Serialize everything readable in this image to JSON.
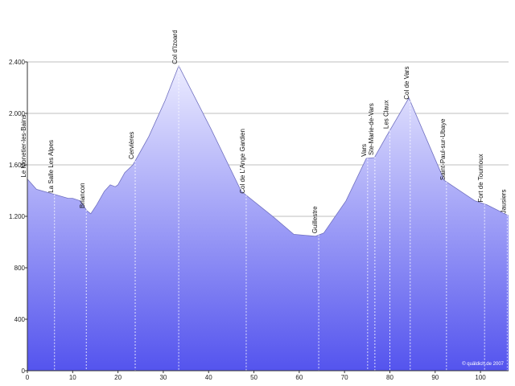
{
  "chart_data": {
    "type": "area",
    "x": [
      0,
      2,
      6,
      9,
      10,
      11.7,
      13.1,
      14,
      15.3,
      17,
      18.3,
      19.4,
      20,
      21.5,
      23.3,
      24.2,
      26.8,
      30.4,
      33.4,
      40.5,
      47.2,
      54.3,
      58.8,
      63.6,
      65.4,
      70.3,
      74.8,
      76.6,
      79.2,
      84.2,
      92,
      98.8,
      101.4,
      106.2
    ],
    "values": [
      1490,
      1410,
      1370,
      1340,
      1340,
      1320,
      1245,
      1220,
      1290,
      1395,
      1445,
      1430,
      1445,
      1540,
      1600,
      1656,
      1820,
      2100,
      2370,
      1880,
      1395,
      1195,
      1060,
      1045,
      1070,
      1320,
      1650,
      1656,
      1820,
      2120,
      1480,
      1320,
      1290,
      1205
    ],
    "xlim": [
      0,
      106.2
    ],
    "ylim": [
      0,
      2400
    ],
    "xticks": [
      0,
      10,
      20,
      30,
      40,
      50,
      60,
      70,
      80,
      90,
      100
    ],
    "yticks": [
      0,
      400,
      800,
      {
        "value": 1200,
        "label": "1.200"
      },
      {
        "value": 1600,
        "label": "1.600"
      },
      {
        "value": 2000,
        "label": "2.000"
      },
      {
        "value": 2400,
        "label": "2.400"
      }
    ],
    "grid": true,
    "waypoints": [
      {
        "label": "Le Monetier-les-Bains",
        "km": 0
      },
      {
        "label": "La Salle Les Alpes",
        "km": 6
      },
      {
        "label": "Briancon",
        "km": 13
      },
      {
        "label": "Cervières",
        "km": 23.8
      },
      {
        "label": "Col d'Izoard",
        "km": 33.4
      },
      {
        "label": "Col de L'Ange Gardien",
        "km": 48.3
      },
      {
        "label": "Guillestre",
        "km": 64.3
      },
      {
        "label": "Vars",
        "km": 75.1
      },
      {
        "label": "Ste-Marie-de-Vars",
        "km": 76.7
      },
      {
        "label": "Les Claux",
        "km": 80
      },
      {
        "label": "Col de Vars",
        "km": 84.5
      },
      {
        "label": "Saint-Paul-sur-Ubaye",
        "km": 92.5
      },
      {
        "label": "Fort de Tournoux",
        "km": 100.9
      },
      {
        "label": "Jausiers",
        "km": 105.9
      }
    ],
    "credit": "© quäldich.de 2007"
  }
}
